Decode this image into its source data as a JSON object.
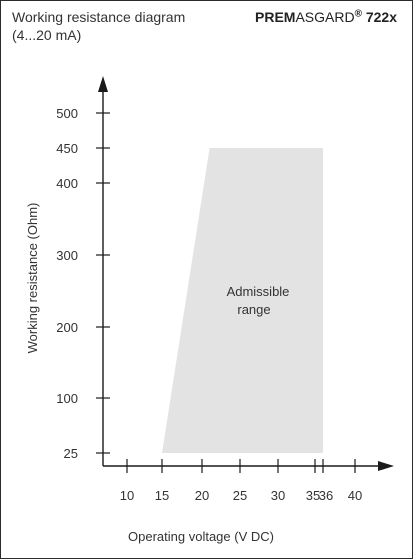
{
  "header": {
    "title_line1": "Working resistance diagram",
    "title_line2": "(4...20 mA)",
    "brand_bold_prefix": "PREM",
    "brand_regular": "ASGARD",
    "brand_registered": "®",
    "brand_model": " 722x"
  },
  "colors": {
    "frame": "#2b2b2b",
    "axis": "#1a1a1a",
    "text": "#333333",
    "region_fill": "#e3e3e3"
  },
  "chart_data": {
    "type": "area",
    "title": "Working resistance diagram (4...20 mA)",
    "xlabel": "Operating voltage  (V DC)",
    "ylabel": "Working resistance  (Ohm)",
    "x_ticks": [
      10,
      15,
      20,
      25,
      30,
      35,
      36,
      40
    ],
    "y_ticks": [
      25,
      100,
      200,
      300,
      400,
      450,
      500
    ],
    "xlim": [
      5,
      42
    ],
    "ylim": [
      0,
      540
    ],
    "region": {
      "name": "Admissible range",
      "label_lines": [
        "Admissible",
        "range"
      ],
      "polygon": [
        {
          "x": 15,
          "y": 25
        },
        {
          "x": 21,
          "y": 450
        },
        {
          "x": 36,
          "y": 450
        },
        {
          "x": 36,
          "y": 25
        }
      ]
    },
    "grid": false,
    "legend": "none"
  }
}
